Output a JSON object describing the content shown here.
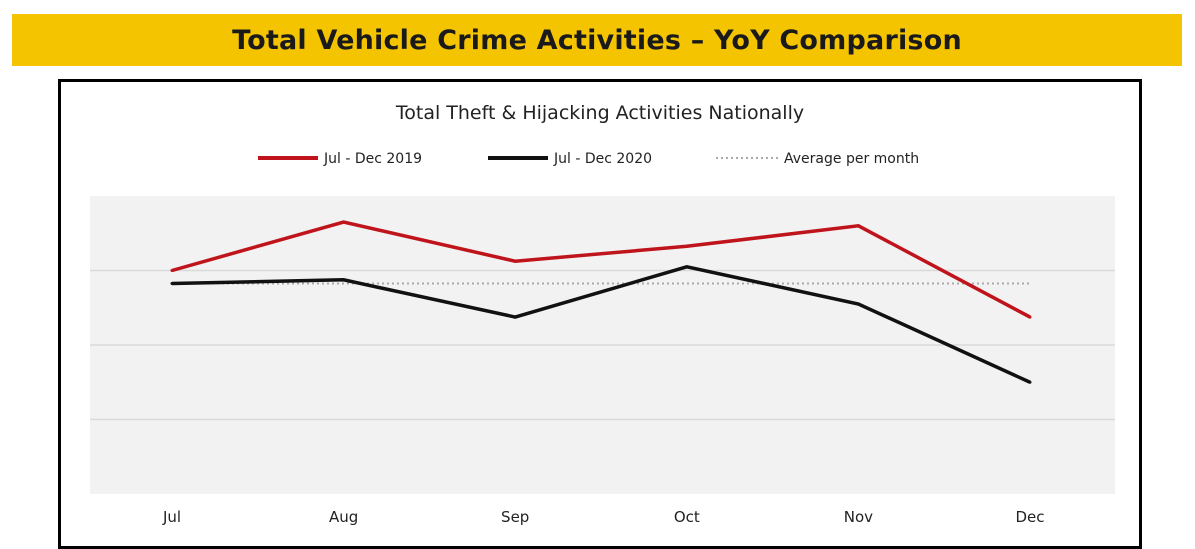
{
  "banner": {
    "title": "Total Vehicle Crime Activities – YoY Comparison"
  },
  "chart_data": {
    "type": "line",
    "title": "Total Theft & Hijacking Activities Nationally",
    "categories": [
      "Jul",
      "Aug",
      "Sep",
      "Oct",
      "Nov",
      "Dec"
    ],
    "series": [
      {
        "name": "Jul - Dec 2019",
        "values": [
          80,
          93,
          82.5,
          86.5,
          92,
          67.5
        ],
        "color": "#c0141c",
        "style": "solid"
      },
      {
        "name": "Jul - Dec 2020",
        "values": [
          76.5,
          77.5,
          67.5,
          81,
          71,
          50
        ],
        "color": "#111111",
        "style": "solid"
      },
      {
        "name": "Average per month",
        "values": [
          76.5,
          76.5,
          76.5,
          76.5,
          76.5,
          76.5
        ],
        "color": "#aaaaaa",
        "style": "dotted"
      }
    ],
    "ylim": [
      20,
      100
    ],
    "gridlines": [
      40,
      60,
      80
    ],
    "legend_position": "top-center",
    "plot_background": "#f2f2f2",
    "grid": true
  },
  "colors": {
    "banner": "#f5c400",
    "frame": "#000000"
  }
}
